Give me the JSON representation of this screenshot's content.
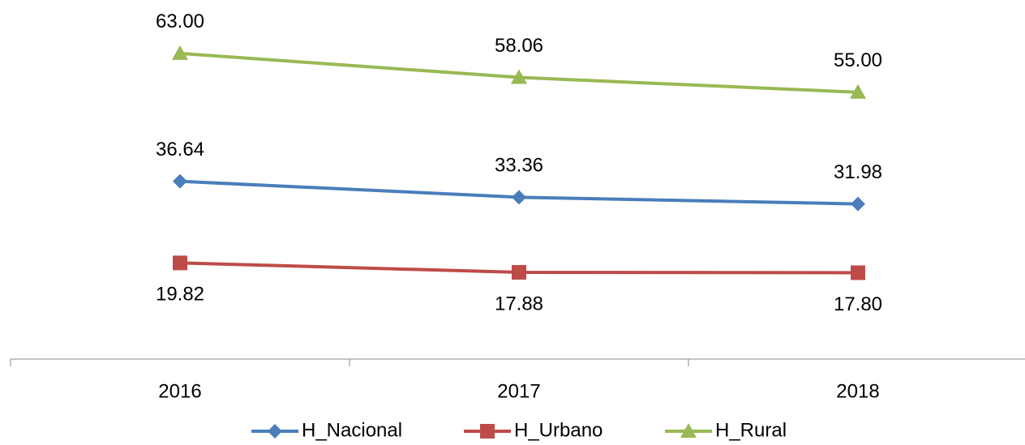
{
  "chart_data": {
    "type": "line",
    "categories": [
      "2016",
      "2017",
      "2018"
    ],
    "series": [
      {
        "name": "H_Nacional",
        "color": "#4a7ebb",
        "marker": "diamond",
        "label_position": "above",
        "values": [
          36.64,
          33.36,
          31.98
        ],
        "value_labels": [
          "36.64",
          "33.36",
          "31.98"
        ]
      },
      {
        "name": "H_Urbano",
        "color": "#be4b48",
        "marker": "square",
        "label_position": "below",
        "values": [
          19.82,
          17.88,
          17.8
        ],
        "value_labels": [
          "19.82",
          "17.88",
          "17.80"
        ]
      },
      {
        "name": "H_Rural",
        "color": "#98b954",
        "marker": "triangle",
        "label_position": "above",
        "values": [
          63,
          58.06,
          55
        ],
        "value_labels": [
          "63.00",
          "58.06",
          "55.00"
        ]
      }
    ],
    "ylim": [
      0,
      70
    ],
    "grid": false,
    "legend": "bottom"
  }
}
